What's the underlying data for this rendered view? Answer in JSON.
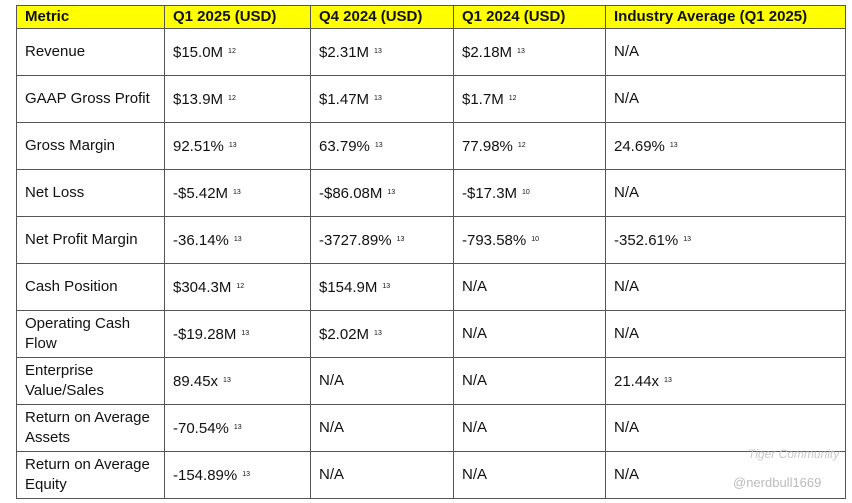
{
  "table": {
    "header": [
      "Metric",
      "Q1 2025 (USD)",
      "Q4 2024 (USD)",
      "Q1 2024 (USD)",
      "Industry Average (Q1 2025)"
    ],
    "rows": [
      [
        {
          "text": "Revenue"
        },
        {
          "text": "$15.0M",
          "ref": "12"
        },
        {
          "text": "$2.31M",
          "ref": "13"
        },
        {
          "text": "$2.18M",
          "ref": "13"
        },
        {
          "text": "N/A"
        }
      ],
      [
        {
          "text": "GAAP Gross Profit"
        },
        {
          "text": "$13.9M",
          "ref": "12"
        },
        {
          "text": "$1.47M",
          "ref": "13"
        },
        {
          "text": "$1.7M",
          "ref": "12"
        },
        {
          "text": "N/A"
        }
      ],
      [
        {
          "text": "Gross Margin"
        },
        {
          "text": "92.51%",
          "ref": "13"
        },
        {
          "text": "63.79%",
          "ref": "13"
        },
        {
          "text": "77.98%",
          "ref": "12"
        },
        {
          "text": "24.69%",
          "ref": "13"
        }
      ],
      [
        {
          "text": "Net Loss"
        },
        {
          "text": "-$5.42M",
          "ref": "13"
        },
        {
          "text": "-$86.08M",
          "ref": "13"
        },
        {
          "text": "-$17.3M",
          "ref": "10"
        },
        {
          "text": "N/A"
        }
      ],
      [
        {
          "text": "Net Profit Margin"
        },
        {
          "text": "-36.14%",
          "ref": "13"
        },
        {
          "text": "-3727.89%",
          "ref": "13"
        },
        {
          "text": "-793.58%",
          "ref": "10"
        },
        {
          "text": "-352.61%",
          "ref": "13"
        }
      ],
      [
        {
          "text": "Cash Position"
        },
        {
          "text": "$304.3M",
          "ref": "12"
        },
        {
          "text": "$154.9M",
          "ref": "13"
        },
        {
          "text": "N/A"
        },
        {
          "text": "N/A"
        }
      ],
      [
        {
          "text": "Operating Cash Flow"
        },
        {
          "text": "-$19.28M",
          "ref": "13"
        },
        {
          "text": "$2.02M",
          "ref": "13"
        },
        {
          "text": "N/A"
        },
        {
          "text": "N/A"
        }
      ],
      [
        {
          "text": "Enterprise Value/Sales"
        },
        {
          "text": "89.45x",
          "ref": "13"
        },
        {
          "text": "N/A"
        },
        {
          "text": "N/A"
        },
        {
          "text": "21.44x",
          "ref": "13"
        }
      ],
      [
        {
          "text": "Return on Average Assets"
        },
        {
          "text": "-70.54%",
          "ref": "13"
        },
        {
          "text": "N/A"
        },
        {
          "text": "N/A"
        },
        {
          "text": "N/A"
        }
      ],
      [
        {
          "text": "Return on Average Equity"
        },
        {
          "text": "-154.89%",
          "ref": "13"
        },
        {
          "text": "N/A"
        },
        {
          "text": "N/A"
        },
        {
          "text": "N/A"
        }
      ]
    ]
  },
  "watermark": {
    "brand": "Tiger Community",
    "handle": "@nerdbull1669"
  }
}
